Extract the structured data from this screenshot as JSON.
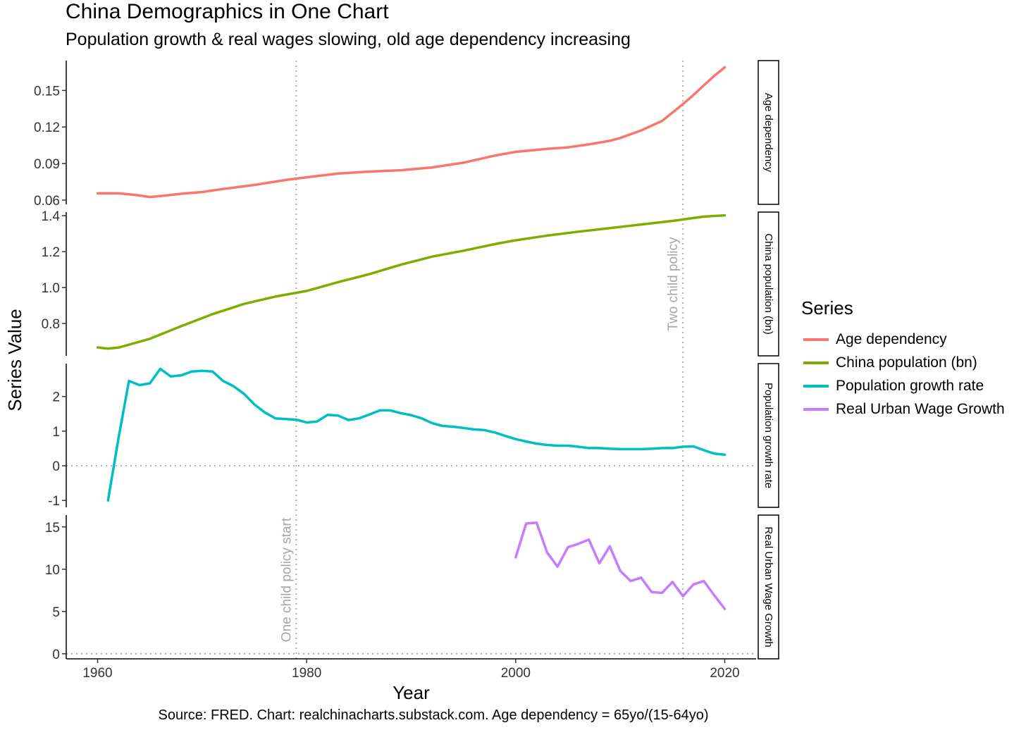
{
  "title": "China Demographics in One Chart",
  "subtitle": "Population growth & real wages slowing, old age dependency increasing",
  "caption": "Source: FRED. Chart: realchinacharts.substack.com. Age dependency = 65yo/(15-64yo)",
  "legend": {
    "title": "Series",
    "items": [
      {
        "label": "Age dependency",
        "color": "#F8766D"
      },
      {
        "label": "China population (bn)",
        "color": "#7CAE00"
      },
      {
        "label": "Population growth rate",
        "color": "#00BFC4"
      },
      {
        "label": "Real Urban Wage Growth",
        "color": "#C77CFF"
      }
    ]
  },
  "chart_data": {
    "type": "line",
    "xlabel": "Year",
    "ylabel": "Series Value",
    "xlim": [
      1957,
      2023
    ],
    "x_ticks": [
      1960,
      1980,
      2000,
      2020
    ],
    "x_tick_labels": [
      "1960",
      "1980",
      "2000",
      "2020"
    ],
    "grid": false,
    "legend_position": "right",
    "annotations": [
      {
        "label": "One child policy start",
        "x": 1979,
        "panel": "Real Urban Wage Growth"
      },
      {
        "label": "Two child policy",
        "x": 2016,
        "panel": "China population (bn)"
      }
    ],
    "panels": [
      {
        "name": "Age dependency",
        "color": "#F8766D",
        "ylim": [
          0.0565,
          0.1745
        ],
        "y_ticks": [
          0.06,
          0.09,
          0.12,
          0.15
        ],
        "y_tick_labels": [
          "0.06",
          "0.09",
          "0.12",
          "0.15"
        ],
        "x": [
          1960,
          1962,
          1963,
          1964,
          1965,
          1966,
          1968,
          1970,
          1972,
          1975,
          1978,
          1980,
          1983,
          1986,
          1989,
          1992,
          1995,
          1998,
          2000,
          2003,
          2005,
          2007,
          2009,
          2010,
          2012,
          2014,
          2015,
          2016,
          2017,
          2018,
          2019,
          2020
        ],
        "values": [
          0.0655,
          0.0655,
          0.0648,
          0.0638,
          0.0625,
          0.0633,
          0.0652,
          0.0666,
          0.0691,
          0.0724,
          0.0765,
          0.0787,
          0.0818,
          0.0834,
          0.0845,
          0.0868,
          0.0907,
          0.0965,
          0.0996,
          0.102,
          0.1033,
          0.1057,
          0.1087,
          0.111,
          0.1172,
          0.125,
          0.1318,
          0.1388,
          0.1462,
          0.1542,
          0.162,
          0.169
        ]
      },
      {
        "name": "China population (bn)",
        "color": "#7CAE00",
        "ylim": [
          0.62,
          1.42
        ],
        "y_ticks": [
          0.8,
          1.0,
          1.2,
          1.4
        ],
        "y_tick_labels": [
          "0.8",
          "1.0",
          "1.2",
          "1.4"
        ],
        "x": [
          1960,
          1961,
          1962,
          1965,
          1968,
          1971,
          1974,
          1977,
          1980,
          1983,
          1986,
          1989,
          1992,
          1995,
          1998,
          2000,
          2003,
          2006,
          2009,
          2012,
          2015,
          2018,
          2020
        ],
        "values": [
          0.667,
          0.66,
          0.666,
          0.715,
          0.785,
          0.852,
          0.909,
          0.95,
          0.981,
          1.03,
          1.075,
          1.127,
          1.172,
          1.205,
          1.242,
          1.263,
          1.289,
          1.311,
          1.331,
          1.351,
          1.371,
          1.395,
          1.402
        ]
      },
      {
        "name": "Population growth rate",
        "color": "#00BFC4",
        "ylim": [
          -1.2,
          2.95
        ],
        "y_ticks": [
          -1,
          0,
          1,
          2
        ],
        "y_tick_labels": [
          "-1",
          "0",
          "1",
          "2"
        ],
        "x": [
          1961,
          1962,
          1963,
          1964,
          1965,
          1966,
          1967,
          1968,
          1969,
          1970,
          1971,
          1972,
          1973,
          1974,
          1975,
          1976,
          1977,
          1978,
          1979,
          1980,
          1981,
          1982,
          1983,
          1984,
          1985,
          1986,
          1987,
          1988,
          1989,
          1990,
          1991,
          1992,
          1993,
          1994,
          1995,
          1996,
          1997,
          1998,
          1999,
          2000,
          2001,
          2002,
          2003,
          2004,
          2005,
          2006,
          2007,
          2008,
          2009,
          2010,
          2011,
          2012,
          2013,
          2014,
          2015,
          2016,
          2017,
          2018,
          2019,
          2020
        ],
        "values": [
          -1.0,
          0.8,
          2.45,
          2.33,
          2.38,
          2.8,
          2.58,
          2.61,
          2.72,
          2.74,
          2.72,
          2.45,
          2.3,
          2.08,
          1.77,
          1.54,
          1.37,
          1.35,
          1.33,
          1.25,
          1.28,
          1.47,
          1.45,
          1.32,
          1.37,
          1.48,
          1.6,
          1.6,
          1.52,
          1.46,
          1.37,
          1.23,
          1.15,
          1.13,
          1.09,
          1.05,
          1.03,
          0.96,
          0.86,
          0.77,
          0.7,
          0.64,
          0.6,
          0.58,
          0.58,
          0.55,
          0.51,
          0.51,
          0.49,
          0.48,
          0.48,
          0.48,
          0.49,
          0.51,
          0.51,
          0.55,
          0.56,
          0.45,
          0.35,
          0.32
        ]
      },
      {
        "name": "Real Urban Wage Growth",
        "color": "#C77CFF",
        "ylim": [
          -0.6,
          16.4
        ],
        "y_ticks": [
          0,
          5,
          10,
          15
        ],
        "y_tick_labels": [
          "0",
          "5",
          "10",
          "15"
        ],
        "x": [
          2000,
          2001,
          2002,
          2003,
          2004,
          2005,
          2006,
          2007,
          2008,
          2009,
          2010,
          2011,
          2012,
          2013,
          2014,
          2015,
          2016,
          2017,
          2018,
          2019,
          2020
        ],
        "values": [
          11.4,
          15.4,
          15.5,
          12.0,
          10.3,
          12.6,
          13.0,
          13.5,
          10.7,
          12.7,
          9.8,
          8.6,
          9.0,
          7.3,
          7.2,
          8.5,
          6.8,
          8.2,
          8.6,
          6.9,
          5.3
        ]
      }
    ]
  }
}
